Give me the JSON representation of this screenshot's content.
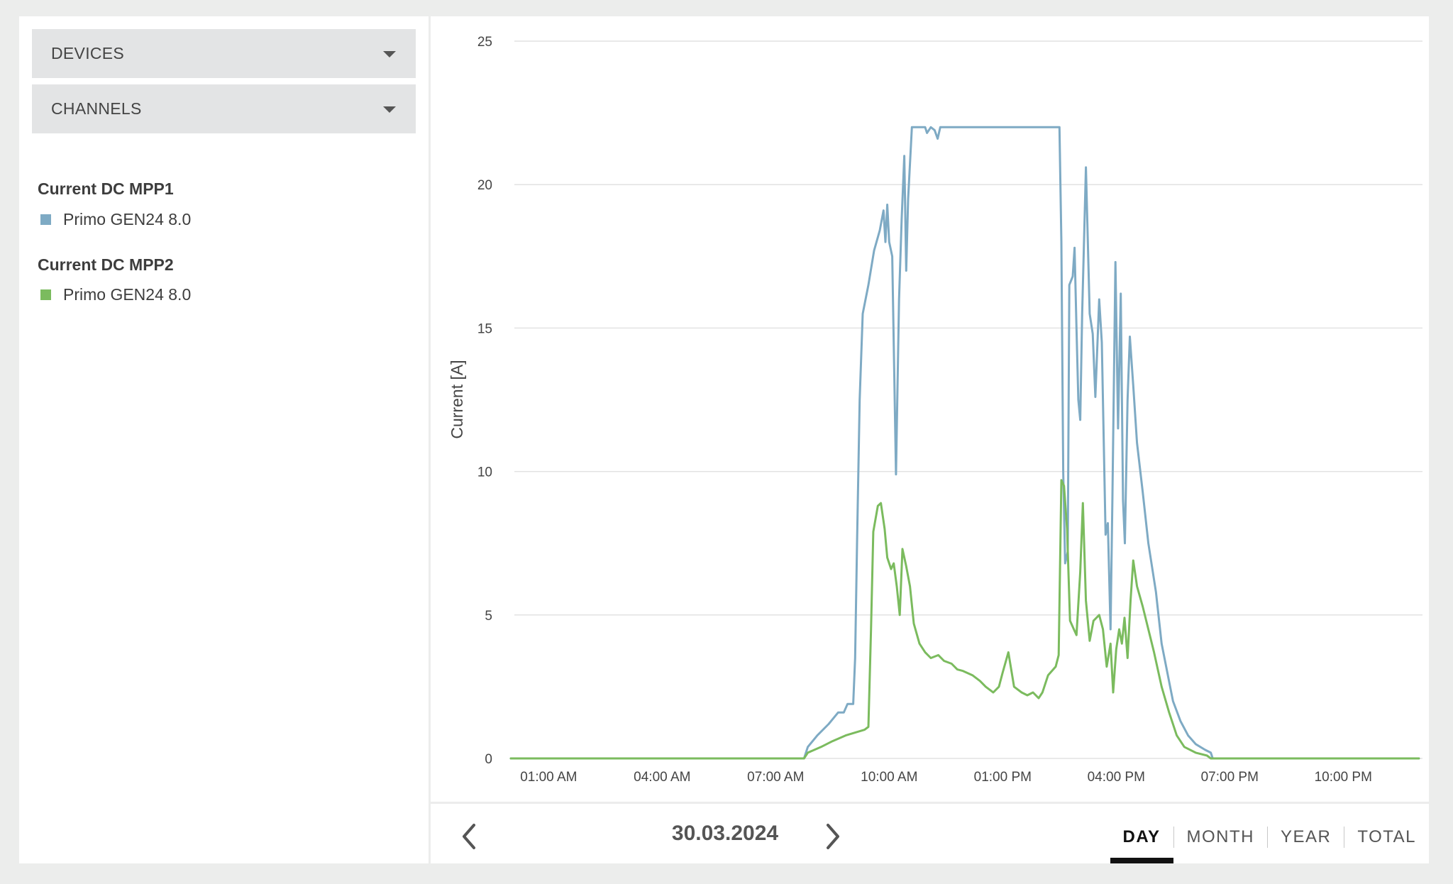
{
  "sidebar": {
    "devices_label": "DEVICES",
    "channels_label": "CHANNELS",
    "legend": [
      {
        "title": "Current DC MPP1",
        "items": [
          {
            "label": "Primo GEN24 8.0",
            "color": "#7eaac4"
          }
        ]
      },
      {
        "title": "Current DC MPP2",
        "items": [
          {
            "label": "Primo GEN24 8.0",
            "color": "#7bbb5e"
          }
        ]
      }
    ]
  },
  "navigation": {
    "date": "30.03.2024",
    "prev_icon": "chevron-left-icon",
    "next_icon": "chevron-right-icon"
  },
  "period_tabs": [
    {
      "label": "DAY",
      "active": true
    },
    {
      "label": "MONTH",
      "active": false
    },
    {
      "label": "YEAR",
      "active": false
    },
    {
      "label": "TOTAL",
      "active": false
    }
  ],
  "chart_data": {
    "type": "line",
    "ylabel": "Current [A]",
    "xlabel": "",
    "ylim": [
      0,
      25
    ],
    "yticks": [
      0,
      5,
      10,
      15,
      20,
      25
    ],
    "xlim_hours": [
      0,
      24
    ],
    "xticks": [
      {
        "h": 1,
        "label": "01:00 AM"
      },
      {
        "h": 4,
        "label": "04:00 AM"
      },
      {
        "h": 7,
        "label": "07:00 AM"
      },
      {
        "h": 10,
        "label": "10:00 AM"
      },
      {
        "h": 13,
        "label": "01:00 PM"
      },
      {
        "h": 16,
        "label": "04:00 PM"
      },
      {
        "h": 19,
        "label": "07:00 PM"
      },
      {
        "h": 22,
        "label": "10:00 PM"
      }
    ],
    "grid": true,
    "series": [
      {
        "name": "Current DC MPP1 — Primo GEN24 8.0",
        "color": "#7eaac4",
        "points": [
          [
            0,
            0
          ],
          [
            7.75,
            0
          ],
          [
            7.85,
            0.4
          ],
          [
            8.1,
            0.8
          ],
          [
            8.4,
            1.2
          ],
          [
            8.65,
            1.6
          ],
          [
            8.8,
            1.6
          ],
          [
            8.9,
            1.9
          ],
          [
            9.05,
            1.9
          ],
          [
            9.1,
            3.5
          ],
          [
            9.15,
            7.5
          ],
          [
            9.22,
            12.5
          ],
          [
            9.3,
            15.5
          ],
          [
            9.45,
            16.5
          ],
          [
            9.6,
            17.7
          ],
          [
            9.75,
            18.4
          ],
          [
            9.85,
            19.1
          ],
          [
            9.9,
            18.0
          ],
          [
            9.95,
            19.3
          ],
          [
            10.0,
            18.0
          ],
          [
            10.08,
            17.5
          ],
          [
            10.18,
            9.9
          ],
          [
            10.26,
            16.0
          ],
          [
            10.33,
            18.8
          ],
          [
            10.4,
            21.0
          ],
          [
            10.45,
            17.0
          ],
          [
            10.5,
            19.5
          ],
          [
            10.6,
            22.0
          ],
          [
            10.95,
            22.0
          ],
          [
            11.0,
            21.8
          ],
          [
            11.1,
            22.0
          ],
          [
            11.2,
            21.9
          ],
          [
            11.28,
            21.6
          ],
          [
            11.35,
            22.0
          ],
          [
            14.5,
            22.0
          ],
          [
            14.55,
            18.0
          ],
          [
            14.6,
            10.0
          ],
          [
            14.65,
            6.8
          ],
          [
            14.72,
            7.2
          ],
          [
            14.76,
            16.5
          ],
          [
            14.85,
            16.8
          ],
          [
            14.9,
            17.8
          ],
          [
            14.95,
            15.0
          ],
          [
            15.0,
            12.5
          ],
          [
            15.05,
            11.8
          ],
          [
            15.1,
            15.5
          ],
          [
            15.2,
            20.6
          ],
          [
            15.3,
            15.5
          ],
          [
            15.38,
            14.8
          ],
          [
            15.45,
            12.6
          ],
          [
            15.55,
            16.0
          ],
          [
            15.62,
            14.5
          ],
          [
            15.72,
            7.8
          ],
          [
            15.78,
            8.2
          ],
          [
            15.85,
            4.5
          ],
          [
            15.9,
            9.0
          ],
          [
            15.98,
            17.3
          ],
          [
            16.05,
            11.5
          ],
          [
            16.12,
            16.2
          ],
          [
            16.18,
            9.0
          ],
          [
            16.23,
            7.5
          ],
          [
            16.3,
            12.5
          ],
          [
            16.36,
            14.7
          ],
          [
            16.45,
            13.0
          ],
          [
            16.55,
            11.0
          ],
          [
            16.7,
            9.3
          ],
          [
            16.85,
            7.5
          ],
          [
            17.05,
            5.8
          ],
          [
            17.2,
            4.0
          ],
          [
            17.35,
            3.0
          ],
          [
            17.5,
            2.0
          ],
          [
            17.7,
            1.3
          ],
          [
            17.9,
            0.8
          ],
          [
            18.1,
            0.5
          ],
          [
            18.35,
            0.3
          ],
          [
            18.5,
            0.2
          ],
          [
            18.55,
            0
          ],
          [
            24,
            0
          ]
        ]
      },
      {
        "name": "Current DC MPP2 — Primo GEN24 8.0",
        "color": "#7bbb5e",
        "points": [
          [
            0,
            0
          ],
          [
            7.75,
            0
          ],
          [
            7.85,
            0.2
          ],
          [
            8.2,
            0.4
          ],
          [
            8.5,
            0.6
          ],
          [
            8.85,
            0.8
          ],
          [
            9.1,
            0.9
          ],
          [
            9.35,
            1.0
          ],
          [
            9.45,
            1.1
          ],
          [
            9.52,
            4.5
          ],
          [
            9.58,
            7.9
          ],
          [
            9.7,
            8.8
          ],
          [
            9.78,
            8.9
          ],
          [
            9.88,
            8.0
          ],
          [
            9.95,
            7.0
          ],
          [
            10.05,
            6.6
          ],
          [
            10.12,
            6.8
          ],
          [
            10.2,
            6.0
          ],
          [
            10.28,
            5.0
          ],
          [
            10.35,
            7.3
          ],
          [
            10.45,
            6.7
          ],
          [
            10.55,
            6.0
          ],
          [
            10.65,
            4.7
          ],
          [
            10.8,
            4.0
          ],
          [
            10.95,
            3.7
          ],
          [
            11.1,
            3.5
          ],
          [
            11.3,
            3.6
          ],
          [
            11.45,
            3.4
          ],
          [
            11.65,
            3.3
          ],
          [
            11.8,
            3.1
          ],
          [
            11.95,
            3.05
          ],
          [
            12.2,
            2.9
          ],
          [
            12.4,
            2.7
          ],
          [
            12.55,
            2.5
          ],
          [
            12.75,
            2.3
          ],
          [
            12.9,
            2.5
          ],
          [
            13.0,
            3.0
          ],
          [
            13.15,
            3.7
          ],
          [
            13.3,
            2.5
          ],
          [
            13.5,
            2.3
          ],
          [
            13.65,
            2.2
          ],
          [
            13.8,
            2.3
          ],
          [
            13.95,
            2.1
          ],
          [
            14.05,
            2.3
          ],
          [
            14.2,
            2.9
          ],
          [
            14.4,
            3.2
          ],
          [
            14.48,
            3.6
          ],
          [
            14.55,
            9.7
          ],
          [
            14.62,
            9.5
          ],
          [
            14.7,
            8.0
          ],
          [
            14.78,
            4.8
          ],
          [
            14.88,
            4.5
          ],
          [
            14.95,
            4.3
          ],
          [
            15.05,
            6.5
          ],
          [
            15.12,
            8.9
          ],
          [
            15.2,
            5.5
          ],
          [
            15.3,
            4.1
          ],
          [
            15.4,
            4.8
          ],
          [
            15.55,
            5.0
          ],
          [
            15.65,
            4.5
          ],
          [
            15.75,
            3.2
          ],
          [
            15.85,
            4.0
          ],
          [
            15.92,
            2.3
          ],
          [
            16.0,
            3.8
          ],
          [
            16.08,
            4.5
          ],
          [
            16.15,
            4.0
          ],
          [
            16.22,
            4.9
          ],
          [
            16.3,
            3.5
          ],
          [
            16.38,
            5.5
          ],
          [
            16.45,
            6.9
          ],
          [
            16.55,
            6.0
          ],
          [
            16.7,
            5.3
          ],
          [
            16.85,
            4.5
          ],
          [
            17.0,
            3.7
          ],
          [
            17.2,
            2.5
          ],
          [
            17.4,
            1.6
          ],
          [
            17.6,
            0.8
          ],
          [
            17.8,
            0.4
          ],
          [
            18.1,
            0.2
          ],
          [
            18.4,
            0.1
          ],
          [
            18.5,
            0
          ],
          [
            24,
            0
          ]
        ]
      }
    ]
  }
}
